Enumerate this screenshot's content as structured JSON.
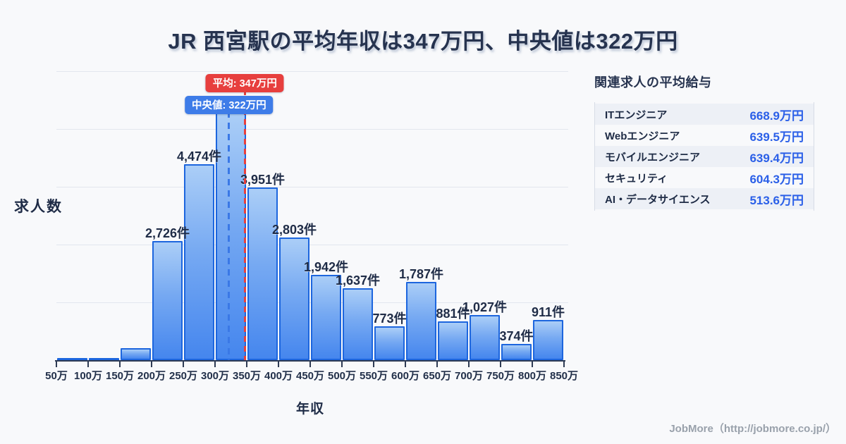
{
  "page": {
    "title": "JR 西宮駅の平均年収は347万円、中央値は322万円",
    "footer": "JobMore（http://jobmore.co.jp/）"
  },
  "chart_data": {
    "type": "bar",
    "title": "JR 西宮駅の平均年収は347万円、中央値は322万円",
    "xlabel": "年収",
    "ylabel": "求人数",
    "unit": "件",
    "x_tick_labels": [
      "50万",
      "100万",
      "150万",
      "200万",
      "250万",
      "300万",
      "350万",
      "400万",
      "450万",
      "500万",
      "550万",
      "600万",
      "650万",
      "700万",
      "750万",
      "800万",
      "850万"
    ],
    "bins": [
      "50万-100万",
      "100万-150万",
      "150万-200万",
      "200万-250万",
      "250万-300万",
      "300万-350万",
      "350万-400万",
      "400万-450万",
      "450万-500万",
      "500万-550万",
      "550万-600万",
      "600万-650万",
      "650万-700万",
      "700万-750万",
      "750万-800万",
      "800万-850万"
    ],
    "values": [
      50,
      30,
      280,
      2726,
      4474,
      5650,
      3951,
      2803,
      1942,
      1637,
      773,
      1787,
      881,
      1027,
      374,
      911
    ],
    "bar_labels": [
      null,
      null,
      null,
      "2,726件",
      "4,474件",
      null,
      "3,951件",
      "2,803件",
      "1,942件",
      "1,637件",
      "773件",
      "1,787件",
      "881件",
      "1,027件",
      "374件",
      "911件"
    ],
    "values_note": "bars without printed labels (indices 0,1,2,5) are estimated from bar heights",
    "mean": {
      "label": "平均: 347万円",
      "value_man_yen": 347
    },
    "median": {
      "label": "中央値: 322万円",
      "value_man_yen": 322
    },
    "ylim": [
      0,
      6600
    ],
    "grid": true,
    "legend": false
  },
  "sidebar": {
    "title": "関連求人の平均給与",
    "rows": [
      {
        "label": "ITエンジニア",
        "value": "668.9万円"
      },
      {
        "label": "Webエンジニア",
        "value": "639.5万円"
      },
      {
        "label": "モバイルエンジニア",
        "value": "639.4万円"
      },
      {
        "label": "セキュリティ",
        "value": "604.3万円"
      },
      {
        "label": "AI・データサイエンス",
        "value": "513.6万円"
      }
    ]
  },
  "colors": {
    "background": "#f8f9fb",
    "title_navy": "#26334f",
    "bar_fill_top": "#abcef7",
    "bar_fill_bottom": "#4586ee",
    "bar_border": "#1d66de",
    "mean_red": "#e73f3e",
    "median_blue": "#3e7ce8",
    "sidebar_value_blue": "#2a5fe8",
    "footer_gray": "#99a1ab"
  }
}
